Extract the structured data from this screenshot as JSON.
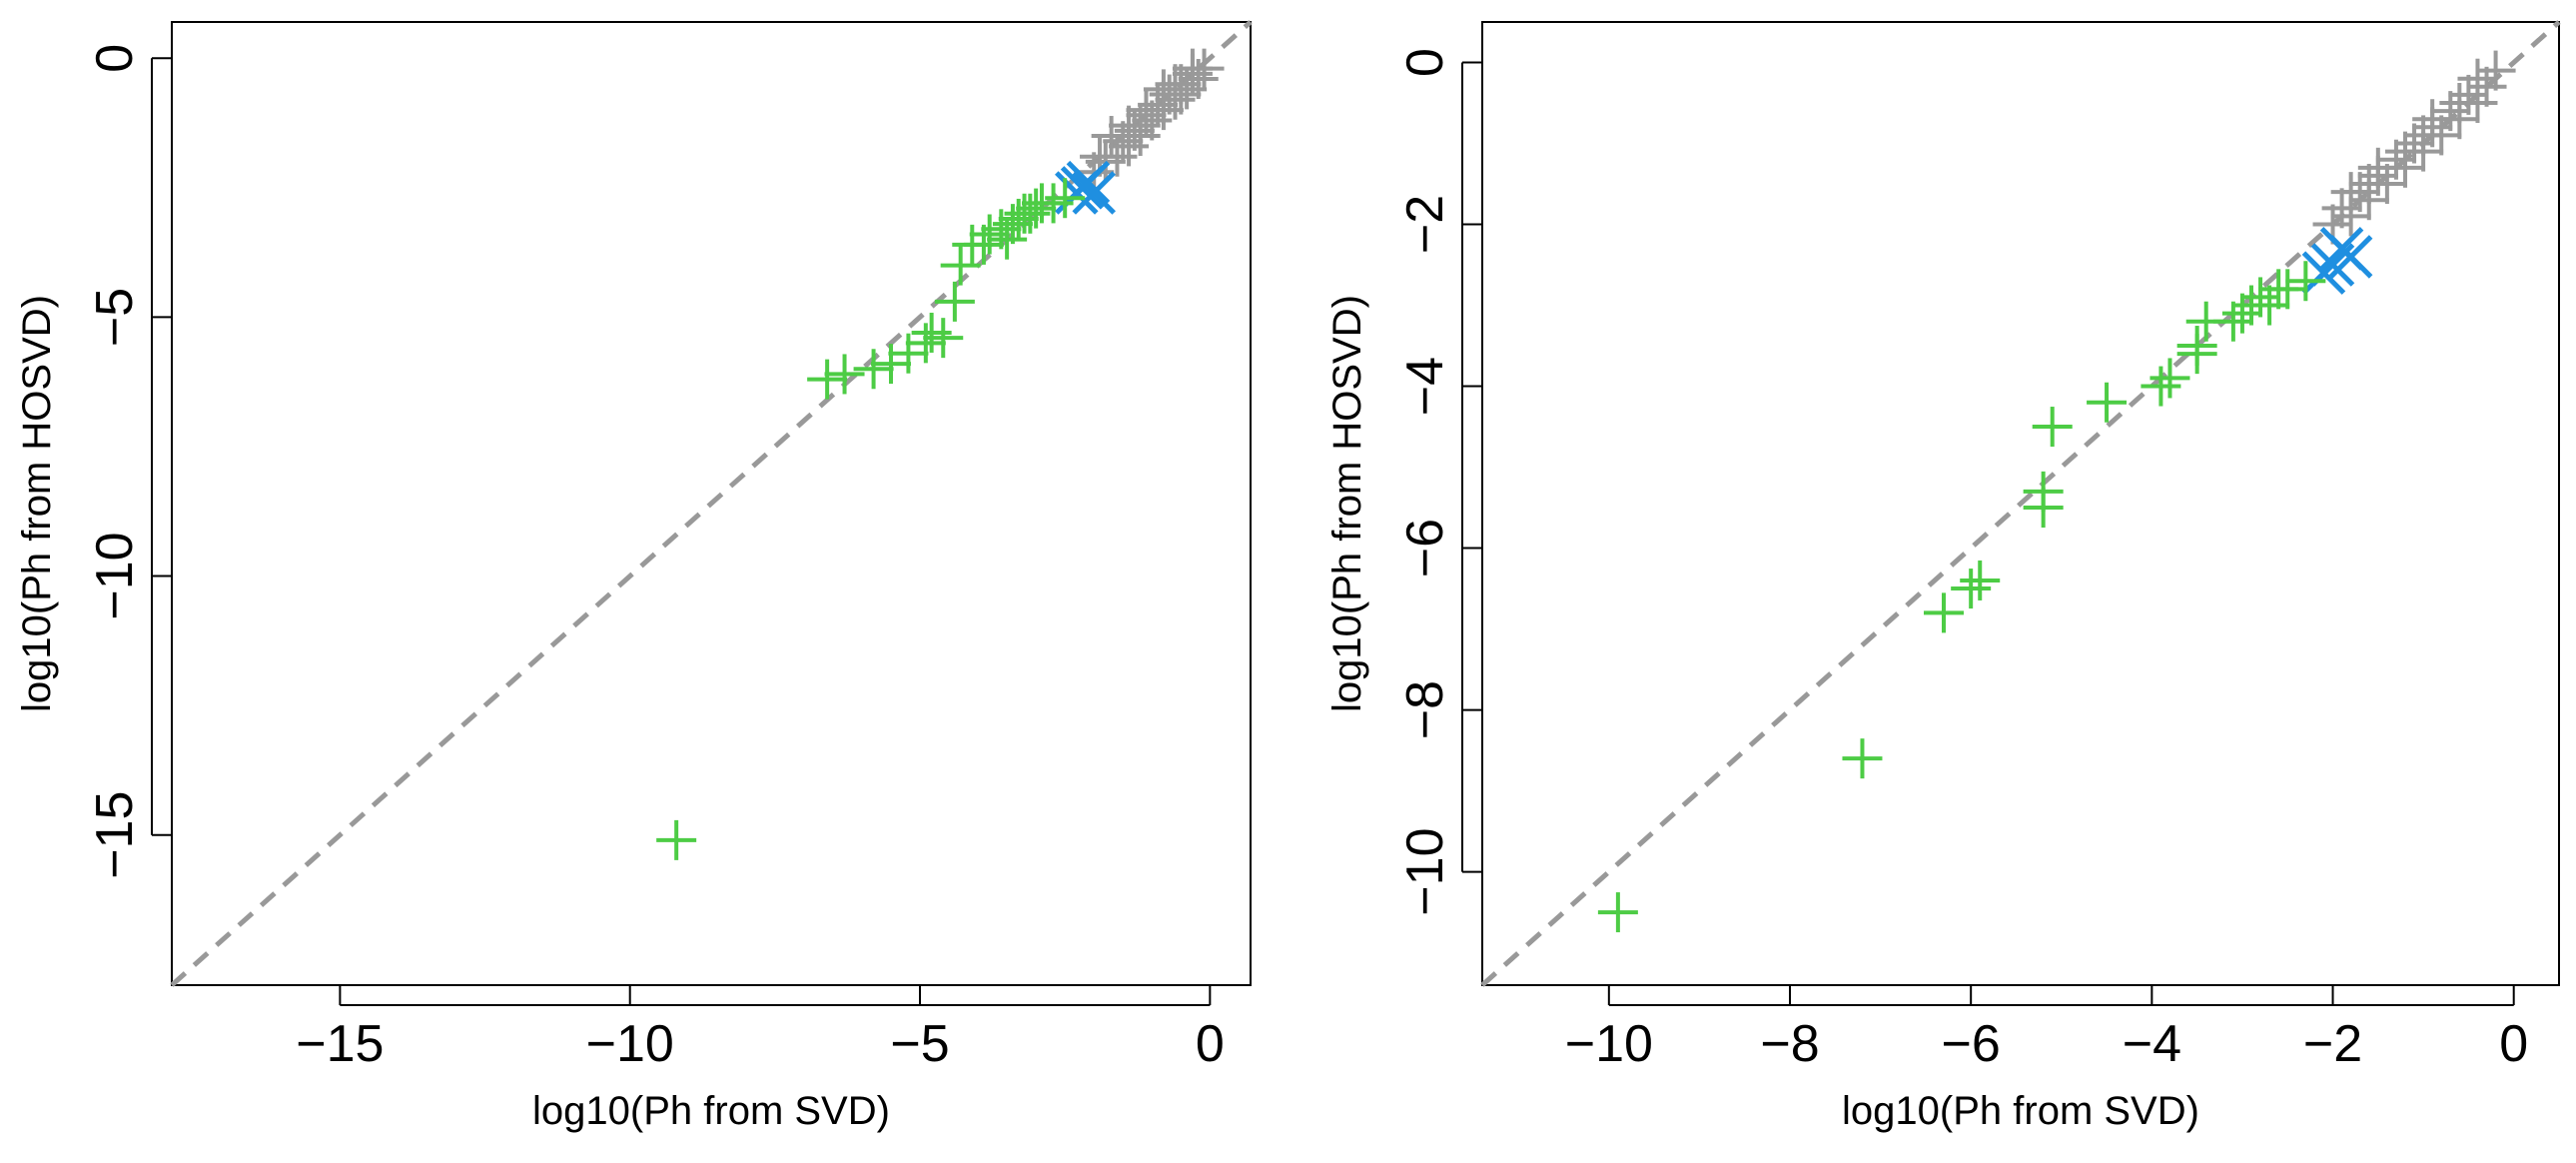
{
  "chart_data": [
    {
      "type": "scatter",
      "title": "",
      "xlabel": "log10(Ph from SVD)",
      "ylabel": "log10(Ph from HOSVD)",
      "xlim": [
        -17.9,
        0.7
      ],
      "ylim": [
        -17.9,
        0.7
      ],
      "xticks": [
        -15,
        -10,
        -5,
        0
      ],
      "yticks": [
        -15,
        -10,
        -5,
        0
      ],
      "xtick_labels": [
        "−15",
        "−10",
        "−5",
        "0"
      ],
      "ytick_labels": [
        "−15",
        "−10",
        "−5",
        "0"
      ],
      "reference_line": {
        "slope": 1,
        "intercept": 0,
        "style": "dashed",
        "color": "#999999"
      },
      "series": [
        {
          "name": "gray",
          "marker": "+",
          "color": "#999999",
          "x": [
            -2.0,
            -1.8,
            -1.6,
            -1.5,
            -1.4,
            -1.3,
            -1.2,
            -1.1,
            -1.0,
            -0.9,
            -0.8,
            -0.7,
            -0.6,
            -0.5,
            -0.4,
            -0.3,
            -0.2,
            -0.1,
            -1.7,
            -1.4,
            -1.1,
            -0.8,
            -0.5,
            -0.3,
            -1.9,
            -1.2,
            -0.6
          ],
          "y": [
            -2.2,
            -2.0,
            -1.9,
            -1.6,
            -1.7,
            -1.4,
            -1.5,
            -1.1,
            -1.2,
            -0.9,
            -1.0,
            -0.7,
            -0.8,
            -0.5,
            -0.6,
            -0.3,
            -0.4,
            -0.2,
            -1.5,
            -1.3,
            -1.0,
            -0.6,
            -0.7,
            -0.2,
            -1.9,
            -1.3,
            -0.5
          ]
        },
        {
          "name": "blue",
          "marker": "x",
          "color": "#1f8fe0",
          "x": [
            -2.3,
            -2.2,
            -2.1,
            -2.0
          ],
          "y": [
            -2.6,
            -2.5,
            -2.4,
            -2.6
          ]
        },
        {
          "name": "green",
          "marker": "+",
          "color": "#4dcc45",
          "x": [
            -9.2,
            -6.6,
            -6.3,
            -5.8,
            -5.5,
            -5.2,
            -4.9,
            -4.8,
            -4.6,
            -4.4,
            -4.3,
            -4.1,
            -3.9,
            -3.8,
            -3.6,
            -3.5,
            -3.4,
            -3.3,
            -3.2,
            -3.1,
            -3.0,
            -2.9,
            -2.7,
            -2.5
          ],
          "y": [
            -15.1,
            -6.2,
            -6.1,
            -6.0,
            -5.9,
            -5.7,
            -5.5,
            -5.3,
            -5.4,
            -4.7,
            -4.0,
            -3.6,
            -3.6,
            -3.4,
            -3.3,
            -3.5,
            -3.2,
            -3.1,
            -3.0,
            -3.0,
            -2.9,
            -2.8,
            -2.8,
            -2.7
          ]
        }
      ]
    },
    {
      "type": "scatter",
      "title": "",
      "xlabel": "log10(Ph from SVD)",
      "ylabel": "log10(Ph from HOSVD)",
      "xlim": [
        -11.4,
        0.5
      ],
      "ylim": [
        -11.4,
        0.5
      ],
      "xticks": [
        -10,
        -8,
        -6,
        -4,
        -2,
        0
      ],
      "yticks": [
        -10,
        -8,
        -6,
        -4,
        -2,
        0
      ],
      "xtick_labels": [
        "−10",
        "−8",
        "−6",
        "−4",
        "−2",
        "0"
      ],
      "ytick_labels": [
        "−10",
        "−8",
        "−6",
        "−4",
        "−2",
        "0"
      ],
      "reference_line": {
        "slope": 1,
        "intercept": 0,
        "style": "dashed",
        "color": "#999999"
      },
      "series": [
        {
          "name": "gray",
          "marker": "+",
          "color": "#999999",
          "x": [
            -2.0,
            -1.9,
            -1.8,
            -1.7,
            -1.6,
            -1.5,
            -1.4,
            -1.3,
            -1.2,
            -1.1,
            -1.0,
            -0.9,
            -0.8,
            -0.7,
            -0.6,
            -0.5,
            -0.4,
            -0.3,
            -0.2,
            -1.8,
            -1.5,
            -1.2,
            -0.9,
            -0.6,
            -0.4,
            -1.6,
            -1.0
          ],
          "y": [
            -2.0,
            -1.8,
            -1.9,
            -1.6,
            -1.7,
            -1.4,
            -1.5,
            -1.2,
            -1.3,
            -1.0,
            -1.1,
            -0.8,
            -0.9,
            -0.6,
            -0.7,
            -0.4,
            -0.5,
            -0.3,
            -0.1,
            -1.6,
            -1.3,
            -1.1,
            -0.7,
            -0.5,
            -0.2,
            -1.5,
            -0.9
          ]
        },
        {
          "name": "blue",
          "marker": "x",
          "color": "#1f8fe0",
          "x": [
            -2.1,
            -2.0,
            -1.9,
            -1.8
          ],
          "y": [
            -2.6,
            -2.5,
            -2.3,
            -2.4
          ]
        },
        {
          "name": "green",
          "marker": "+",
          "color": "#4dcc45",
          "x": [
            -9.9,
            -7.2,
            -6.3,
            -6.0,
            -5.9,
            -5.2,
            -5.2,
            -5.1,
            -4.5,
            -3.9,
            -3.8,
            -3.5,
            -3.5,
            -3.4,
            -3.1,
            -3.0,
            -2.9,
            -2.8,
            -2.7,
            -2.6,
            -2.5,
            -2.3
          ],
          "y": [
            -10.5,
            -8.6,
            -6.8,
            -6.5,
            -6.4,
            -5.5,
            -5.3,
            -4.5,
            -4.2,
            -4.0,
            -3.9,
            -3.6,
            -3.5,
            -3.2,
            -3.2,
            -3.1,
            -3.0,
            -2.9,
            -3.0,
            -2.8,
            -2.8,
            -2.7
          ]
        }
      ]
    }
  ]
}
